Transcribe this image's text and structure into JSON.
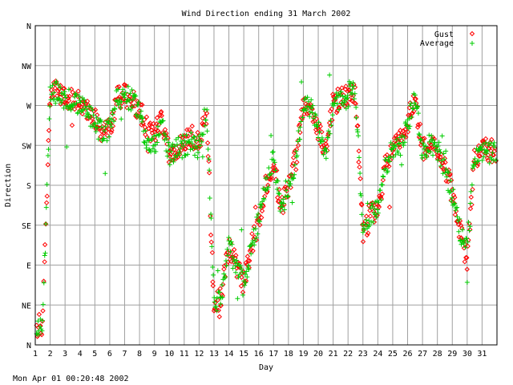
{
  "chart_data": {
    "type": "scatter",
    "title": "Wind Direction ending 31 March 2002",
    "xlabel": "Day",
    "ylabel": "Direction",
    "xlim": [
      1,
      32
    ],
    "ylim": [
      0,
      360
    ],
    "grid": true,
    "legend_position": "top-right",
    "x_ticks": [
      "1",
      "2",
      "3",
      "4",
      "5",
      "6",
      "7",
      "8",
      "9",
      "10",
      "11",
      "12",
      "13",
      "14",
      "15",
      "16",
      "17",
      "18",
      "19",
      "20",
      "21",
      "22",
      "23",
      "24",
      "25",
      "26",
      "27",
      "28",
      "29",
      "30",
      "31"
    ],
    "y_ticks": [
      {
        "value": 0,
        "label": "N"
      },
      {
        "value": 45,
        "label": "NE"
      },
      {
        "value": 90,
        "label": "E"
      },
      {
        "value": 135,
        "label": "SE"
      },
      {
        "value": 180,
        "label": "S"
      },
      {
        "value": 225,
        "label": "SW"
      },
      {
        "value": 270,
        "label": "W"
      },
      {
        "value": 315,
        "label": "NW"
      },
      {
        "value": 360,
        "label": "N"
      }
    ],
    "series": [
      {
        "name": "Gust",
        "marker": "diamond",
        "color": "#ff0000",
        "profile": [
          [
            1.0,
            20
          ],
          [
            1.5,
            25
          ],
          [
            2.0,
            280
          ],
          [
            2.5,
            290
          ],
          [
            3.0,
            275
          ],
          [
            3.5,
            278
          ],
          [
            4.0,
            272
          ],
          [
            4.5,
            265
          ],
          [
            5.0,
            255
          ],
          [
            5.5,
            240
          ],
          [
            6.0,
            245
          ],
          [
            6.5,
            278
          ],
          [
            7.0,
            282
          ],
          [
            7.5,
            275
          ],
          [
            8.0,
            265
          ],
          [
            8.5,
            245
          ],
          [
            9.0,
            240
          ],
          [
            9.5,
            255
          ],
          [
            10.0,
            215
          ],
          [
            10.5,
            220
          ],
          [
            11.0,
            230
          ],
          [
            11.5,
            235
          ],
          [
            12.0,
            225
          ],
          [
            12.5,
            262
          ],
          [
            13.0,
            45
          ],
          [
            13.5,
            55
          ],
          [
            14.0,
            110
          ],
          [
            14.5,
            90
          ],
          [
            15.0,
            70
          ],
          [
            15.5,
            110
          ],
          [
            16.0,
            140
          ],
          [
            16.5,
            180
          ],
          [
            17.0,
            210
          ],
          [
            17.5,
            150
          ],
          [
            18.0,
            180
          ],
          [
            18.5,
            210
          ],
          [
            19.0,
            270
          ],
          [
            19.5,
            265
          ],
          [
            20.0,
            240
          ],
          [
            20.5,
            220
          ],
          [
            21.0,
            272
          ],
          [
            21.5,
            278
          ],
          [
            22.0,
            282
          ],
          [
            22.5,
            285
          ],
          [
            23.0,
            120
          ],
          [
            23.5,
            150
          ],
          [
            24.0,
            150
          ],
          [
            24.5,
            200
          ],
          [
            25.0,
            220
          ],
          [
            25.5,
            230
          ],
          [
            26.0,
            250
          ],
          [
            26.5,
            280
          ],
          [
            27.0,
            220
          ],
          [
            27.5,
            230
          ],
          [
            28.0,
            220
          ],
          [
            28.5,
            200
          ],
          [
            29.0,
            175
          ],
          [
            29.5,
            130
          ],
          [
            30.0,
            95
          ],
          [
            30.5,
            210
          ],
          [
            31.0,
            222
          ],
          [
            32.0,
            215
          ]
        ]
      },
      {
        "name": "Average",
        "marker": "plus",
        "color": "#00cc00",
        "profile": [
          [
            1.0,
            18
          ],
          [
            1.5,
            22
          ],
          [
            2.0,
            280
          ],
          [
            2.5,
            285
          ],
          [
            3.0,
            275
          ],
          [
            3.5,
            278
          ],
          [
            4.0,
            272
          ],
          [
            4.5,
            265
          ],
          [
            5.0,
            250
          ],
          [
            5.5,
            238
          ],
          [
            6.0,
            245
          ],
          [
            6.5,
            278
          ],
          [
            7.0,
            282
          ],
          [
            7.5,
            275
          ],
          [
            8.0,
            265
          ],
          [
            8.5,
            222
          ],
          [
            9.0,
            225
          ],
          [
            9.5,
            250
          ],
          [
            10.0,
            212
          ],
          [
            10.5,
            220
          ],
          [
            11.0,
            225
          ],
          [
            11.5,
            230
          ],
          [
            12.0,
            222
          ],
          [
            12.5,
            268
          ],
          [
            13.0,
            45
          ],
          [
            13.5,
            55
          ],
          [
            14.0,
            110
          ],
          [
            14.5,
            90
          ],
          [
            15.0,
            65
          ],
          [
            15.5,
            110
          ],
          [
            16.0,
            140
          ],
          [
            16.5,
            180
          ],
          [
            17.0,
            210
          ],
          [
            17.5,
            150
          ],
          [
            18.0,
            180
          ],
          [
            18.5,
            210
          ],
          [
            19.0,
            270
          ],
          [
            19.5,
            265
          ],
          [
            20.0,
            240
          ],
          [
            20.5,
            220
          ],
          [
            21.0,
            270
          ],
          [
            21.5,
            278
          ],
          [
            22.0,
            280
          ],
          [
            22.5,
            285
          ],
          [
            23.0,
            130
          ],
          [
            23.5,
            150
          ],
          [
            24.0,
            150
          ],
          [
            24.5,
            200
          ],
          [
            25.0,
            220
          ],
          [
            25.5,
            225
          ],
          [
            26.0,
            250
          ],
          [
            26.5,
            280
          ],
          [
            27.0,
            220
          ],
          [
            27.5,
            225
          ],
          [
            28.0,
            220
          ],
          [
            28.5,
            200
          ],
          [
            29.0,
            170
          ],
          [
            29.5,
            130
          ],
          [
            30.0,
            110
          ],
          [
            30.5,
            215
          ],
          [
            31.0,
            220
          ],
          [
            32.0,
            215
          ]
        ]
      }
    ]
  },
  "footer_timestamp": "Mon Apr 01 00:20:48 2002"
}
